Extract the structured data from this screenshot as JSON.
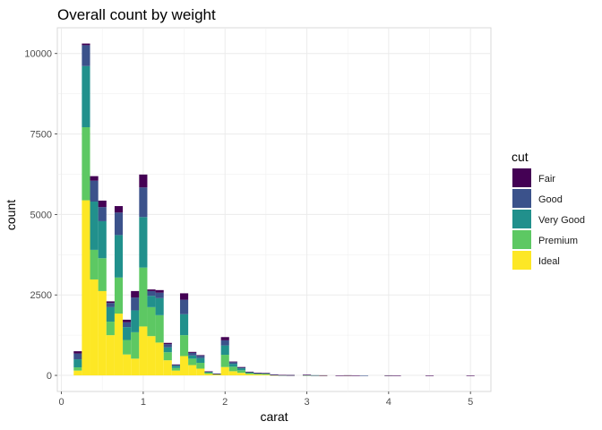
{
  "chart_data": {
    "type": "bar",
    "stacked": true,
    "title": "Overall count by weight",
    "xlabel": "carat",
    "ylabel": "count",
    "xlim": [
      -0.05,
      5.25
    ],
    "ylim": [
      -500,
      10800
    ],
    "xticks": [
      0,
      1,
      2,
      3,
      4,
      5
    ],
    "yticks": [
      0,
      2500,
      5000,
      7500,
      10000
    ],
    "bin_width": 0.1,
    "grid": true,
    "legend": {
      "title": "cut",
      "position": "right"
    },
    "series": [
      {
        "name": "Ideal",
        "color": "#FDE725"
      },
      {
        "name": "Premium",
        "color": "#5DC863"
      },
      {
        "name": "Very Good",
        "color": "#21908C"
      },
      {
        "name": "Good",
        "color": "#3B528B"
      },
      {
        "name": "Fair",
        "color": "#440154"
      }
    ],
    "bins": [
      {
        "x": 0.2,
        "values": [
          150,
          100,
          250,
          180,
          70
        ]
      },
      {
        "x": 0.3,
        "values": [
          5440,
          2270,
          1900,
          650,
          50
        ]
      },
      {
        "x": 0.4,
        "values": [
          2980,
          920,
          1500,
          650,
          140
        ]
      },
      {
        "x": 0.5,
        "values": [
          2620,
          1020,
          1150,
          440,
          200
        ]
      },
      {
        "x": 0.6,
        "values": [
          1250,
          420,
          450,
          130,
          50
        ]
      },
      {
        "x": 0.7,
        "values": [
          1920,
          1120,
          1320,
          700,
          200
        ]
      },
      {
        "x": 0.8,
        "values": [
          650,
          450,
          400,
          150,
          80
        ]
      },
      {
        "x": 0.9,
        "values": [
          520,
          820,
          680,
          400,
          200
        ]
      },
      {
        "x": 1.0,
        "values": [
          1520,
          1830,
          1570,
          920,
          400
        ]
      },
      {
        "x": 1.1,
        "values": [
          1220,
          900,
          350,
          150,
          50
        ]
      },
      {
        "x": 1.2,
        "values": [
          1020,
          850,
          530,
          170,
          80
        ]
      },
      {
        "x": 1.3,
        "values": [
          470,
          250,
          150,
          100,
          40
        ]
      },
      {
        "x": 1.4,
        "values": [
          150,
          80,
          70,
          30,
          10
        ]
      },
      {
        "x": 1.5,
        "values": [
          600,
          650,
          650,
          450,
          200
        ]
      },
      {
        "x": 1.6,
        "values": [
          320,
          200,
          100,
          80,
          30
        ]
      },
      {
        "x": 1.7,
        "values": [
          210,
          180,
          150,
          70,
          20
        ]
      },
      {
        "x": 1.8,
        "values": [
          45,
          40,
          25,
          10,
          5
        ]
      },
      {
        "x": 1.9,
        "values": [
          25,
          15,
          10,
          5,
          2
        ]
      },
      {
        "x": 2.0,
        "values": [
          260,
          380,
          290,
          160,
          100
        ]
      },
      {
        "x": 2.1,
        "values": [
          130,
          140,
          90,
          50,
          20
        ]
      },
      {
        "x": 2.2,
        "values": [
          80,
          80,
          60,
          30,
          10
        ]
      },
      {
        "x": 2.3,
        "values": [
          40,
          30,
          25,
          15,
          5
        ]
      },
      {
        "x": 2.4,
        "values": [
          30,
          20,
          15,
          10,
          5
        ]
      },
      {
        "x": 2.5,
        "values": [
          25,
          20,
          15,
          10,
          5
        ]
      },
      {
        "x": 2.6,
        "values": [
          8,
          6,
          5,
          4,
          2
        ]
      },
      {
        "x": 2.7,
        "values": [
          5,
          4,
          3,
          2,
          1
        ]
      },
      {
        "x": 2.8,
        "values": [
          3,
          3,
          2,
          1,
          1
        ]
      },
      {
        "x": 3.0,
        "values": [
          5,
          4,
          4,
          3,
          5
        ]
      },
      {
        "x": 3.1,
        "values": [
          1,
          1,
          1,
          1,
          0
        ]
      },
      {
        "x": 3.2,
        "values": [
          1,
          1,
          0,
          0,
          1
        ]
      },
      {
        "x": 3.4,
        "values": [
          0,
          0,
          0,
          0,
          1
        ]
      },
      {
        "x": 3.5,
        "values": [
          1,
          0,
          0,
          1,
          1
        ]
      },
      {
        "x": 3.6,
        "values": [
          0,
          0,
          0,
          0,
          1
        ]
      },
      {
        "x": 3.7,
        "values": [
          0,
          0,
          0,
          1,
          0
        ]
      },
      {
        "x": 3.9,
        "values": [
          0,
          0,
          0,
          0,
          0
        ]
      },
      {
        "x": 4.0,
        "values": [
          0,
          1,
          0,
          0,
          1
        ]
      },
      {
        "x": 4.1,
        "values": [
          0,
          0,
          0,
          0,
          1
        ]
      },
      {
        "x": 4.5,
        "values": [
          0,
          0,
          0,
          0,
          1
        ]
      },
      {
        "x": 5.0,
        "values": [
          0,
          0,
          0,
          0,
          1
        ]
      }
    ]
  }
}
